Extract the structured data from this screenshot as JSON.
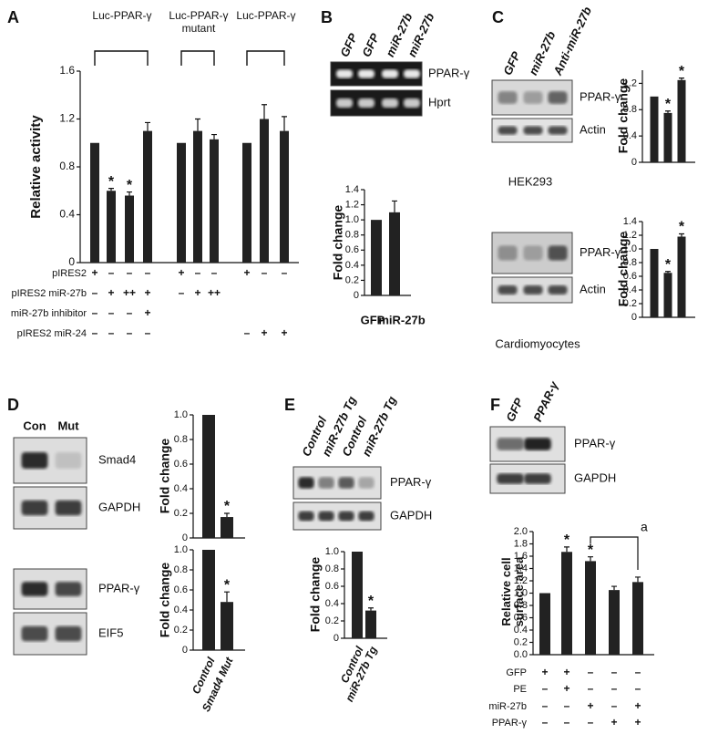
{
  "panels": [
    {
      "label": "A",
      "groups": [
        "Luc-PPAR-γ",
        "Luc-PPAR-γ mutant",
        "Luc-PPAR-γ"
      ],
      "conditions": [
        {
          "name": "pIRES2",
          "marks": [
            "+",
            "–",
            "–",
            "–",
            "+",
            "–",
            "–",
            "+",
            "–",
            "–"
          ]
        },
        {
          "name": "pIRES2 miR-27b",
          "marks": [
            "–",
            "+",
            "++",
            "+",
            "–",
            "+",
            "++",
            null,
            null,
            null
          ]
        },
        {
          "name": "miR-27b inhibitor",
          "marks": [
            "–",
            "–",
            "–",
            "+",
            null,
            null,
            null,
            null,
            null,
            null
          ]
        },
        {
          "name": "pIRES2 miR-24",
          "marks": [
            "–",
            "–",
            "–",
            "–",
            null,
            null,
            null,
            "–",
            "+",
            "+"
          ]
        }
      ]
    },
    {
      "label": "B",
      "lanes": [
        "GFP",
        "GFP",
        "miR-27b",
        "miR-27b"
      ],
      "bands": [
        "PPAR-γ",
        "Hprt"
      ]
    },
    {
      "label": "C",
      "lanes": [
        "GFP",
        "miR-27b",
        "Anti-miR-27b"
      ],
      "bands": [
        "PPAR-γ",
        "Actin",
        "PPAR-γ",
        "Actin"
      ],
      "captions": [
        "HEK293",
        "Cardiomyocytes"
      ]
    },
    {
      "label": "D",
      "lanes": [
        "Con",
        "Mut"
      ],
      "bands": [
        "Smad4",
        "GAPDH",
        "PPAR-γ",
        "EIF5"
      ]
    },
    {
      "label": "E",
      "lanes": [
        "Control",
        "miR-27b Tg",
        "Control",
        "miR-27b Tg"
      ],
      "bands": [
        "PPAR-γ",
        "GAPDH"
      ]
    },
    {
      "label": "F",
      "lanes": [
        "GFP",
        "PPAR-γ"
      ],
      "bands": [
        "PPAR-γ",
        "GAPDH"
      ],
      "annotation": "a",
      "conditions": [
        {
          "name": "GFP",
          "marks": [
            "+",
            "+",
            "–",
            "–",
            "–"
          ]
        },
        {
          "name": "PE",
          "marks": [
            "–",
            "+",
            "–",
            "–",
            "–"
          ]
        },
        {
          "name": "miR-27b",
          "marks": [
            "–",
            "–",
            "+",
            "–",
            "+"
          ]
        },
        {
          "name": "PPAR-γ",
          "marks": [
            "–",
            "–",
            "–",
            "+",
            "+"
          ]
        }
      ]
    }
  ],
  "chart_data": [
    {
      "type": "bar",
      "y_label": "Relative activity",
      "color": "#222222",
      "values": [
        1.0,
        0.6,
        0.56,
        1.1,
        1.0,
        1.1,
        1.03,
        1.0,
        1.2,
        1.1
      ],
      "errors": [
        null,
        0.02,
        0.03,
        0.07,
        null,
        0.1,
        0.04,
        null,
        0.12,
        0.12
      ],
      "significance": [
        null,
        "*",
        "*",
        null,
        null,
        null,
        null,
        null,
        null,
        null
      ],
      "ylim": [
        0,
        1.6
      ],
      "yticks": [
        0,
        0.4,
        0.8,
        1.2,
        1.6
      ]
    },
    {
      "type": "bar",
      "y_label": "Fold change",
      "color": "#222222",
      "categories": [
        "GFP",
        "miR-27b"
      ],
      "values": [
        1.0,
        1.1
      ],
      "errors": [
        null,
        0.15
      ],
      "ylim": [
        0,
        1.4
      ],
      "yticks": [
        0,
        0.2,
        0.4,
        0.6,
        0.8,
        {
          "value": 1,
          "label": "1.0"
        },
        1.2,
        1.4
      ]
    },
    {
      "type": "bar",
      "y_label": "Fold change",
      "color": "#222222",
      "values": [
        1.0,
        0.75,
        1.25
      ],
      "errors": [
        null,
        0.03,
        0.03
      ],
      "significance": [
        null,
        "*",
        "*"
      ],
      "ylim": [
        0,
        1.4
      ],
      "yticks": [
        0,
        0.4,
        0.8,
        1.2
      ]
    },
    {
      "type": "bar",
      "y_label": "Fold change",
      "color": "#222222",
      "values": [
        1.0,
        0.65,
        1.18
      ],
      "errors": [
        null,
        0.02,
        0.04
      ],
      "significance": [
        null,
        "*",
        "*"
      ],
      "ylim": [
        0,
        1.4
      ],
      "yticks": [
        0,
        0.2,
        0.4,
        0.6,
        0.8,
        {
          "value": 1,
          "label": "1.0"
        },
        1.2,
        1.4
      ]
    },
    {
      "type": "bar",
      "y_label": "Fold change",
      "color": "#222222",
      "values": [
        1.0,
        0.17
      ],
      "errors": [
        null,
        0.03
      ],
      "significance": [
        null,
        "*"
      ],
      "ylim": [
        0,
        1
      ],
      "yticks": [
        0,
        0.2,
        0.4,
        0.6,
        0.8,
        {
          "value": 1,
          "label": "1.0"
        }
      ]
    },
    {
      "type": "bar",
      "y_label": "Fold change",
      "color": "#222222",
      "categories": [
        "Control",
        "Smad4 Mut"
      ],
      "values": [
        1.0,
        0.48
      ],
      "errors": [
        null,
        0.1
      ],
      "significance": [
        null,
        "*"
      ],
      "ylim": [
        0,
        1
      ],
      "yticks": [
        0,
        0.2,
        0.4,
        0.6,
        0.8,
        {
          "value": 1,
          "label": "1.0"
        }
      ]
    },
    {
      "type": "bar",
      "y_label": "Fold change",
      "color": "#222222",
      "categories": [
        "Control",
        "miR-27b Tg"
      ],
      "values": [
        1.0,
        0.32
      ],
      "errors": [
        null,
        0.03
      ],
      "significance": [
        null,
        "*"
      ],
      "ylim": [
        0,
        1
      ],
      "yticks": [
        0,
        0.2,
        0.4,
        0.6,
        0.8,
        {
          "value": 1,
          "label": "1.0"
        }
      ]
    },
    {
      "type": "bar",
      "y_label": "Relative cell surface area",
      "color": "#222222",
      "values": [
        1.0,
        1.67,
        1.52,
        1.05,
        1.18
      ],
      "errors": [
        null,
        0.08,
        0.07,
        0.06,
        0.08
      ],
      "significance": [
        null,
        "*",
        "*",
        null,
        null
      ],
      "ylim": [
        0,
        2
      ],
      "yticks": [
        {
          "value": 0,
          "label": "0.0"
        },
        0.2,
        0.4,
        0.6,
        0.8,
        {
          "value": 1,
          "label": "1.0"
        },
        1.2,
        1.4,
        1.6,
        1.8,
        {
          "value": 2,
          "label": "2.0"
        }
      ]
    }
  ]
}
